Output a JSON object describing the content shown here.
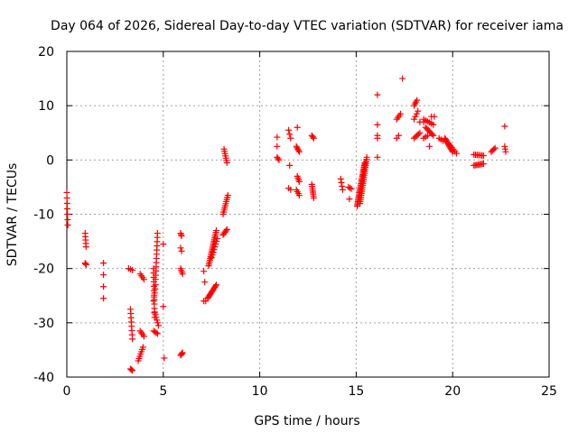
{
  "chart_data": {
    "type": "scatter",
    "title": "Day 064 of 2026, Sidereal Day-to-day VTEC variation (SDTVAR) for receiver iama",
    "xlabel": "GPS time / hours",
    "ylabel": "SDTVAR / TECUs",
    "xlim": [
      0,
      25
    ],
    "ylim": [
      -40,
      20
    ],
    "xticks": [
      0,
      5,
      10,
      15,
      20,
      25
    ],
    "yticks": [
      -40,
      -30,
      -20,
      -10,
      0,
      10,
      20
    ],
    "grid": true,
    "marker": "+",
    "color": "#ff0000",
    "series": [
      {
        "name": "iama",
        "segments": [
          {
            "x0": 0.0,
            "y0": -6,
            "x1": 0.05,
            "y1": -12,
            "n": 7
          },
          {
            "x0": 0.95,
            "y0": -13.5,
            "x1": 1.0,
            "y1": -16,
            "n": 5
          },
          {
            "x0": 0.95,
            "y0": -19,
            "x1": 1.0,
            "y1": -19.3,
            "n": 3
          },
          {
            "x0": 1.9,
            "y0": -19,
            "x1": 1.9,
            "y1": -25.5,
            "n": 4
          },
          {
            "x0": 3.2,
            "y0": -20,
            "x1": 3.4,
            "y1": -20.3,
            "n": 3
          },
          {
            "x0": 3.3,
            "y0": -27.5,
            "x1": 3.4,
            "y1": -33,
            "n": 8
          },
          {
            "x0": 3.3,
            "y0": -38.5,
            "x1": 3.4,
            "y1": -38.8,
            "n": 3
          },
          {
            "x0": 3.8,
            "y0": -21,
            "x1": 4.0,
            "y1": -22,
            "n": 4
          },
          {
            "x0": 3.8,
            "y0": -31.5,
            "x1": 4.0,
            "y1": -32.5,
            "n": 4
          },
          {
            "x0": 3.7,
            "y0": -37,
            "x1": 3.95,
            "y1": -34.5,
            "n": 7
          },
          {
            "x0": 4.5,
            "y0": -20,
            "x1": 4.55,
            "y1": -29,
            "n": 12
          },
          {
            "x0": 4.5,
            "y0": -31.5,
            "x1": 4.7,
            "y1": -32,
            "n": 4
          },
          {
            "x0": 4.55,
            "y0": -28,
            "x1": 4.75,
            "y1": -30.5,
            "n": 6
          },
          {
            "x0": 4.6,
            "y0": -22,
            "x1": 4.7,
            "y1": -13.5,
            "n": 12
          },
          {
            "x0": 4.5,
            "y0": -26,
            "x1": 4.6,
            "y1": -23,
            "n": 5
          },
          {
            "x0": 5.0,
            "y0": -15.5,
            "x1": 5.0,
            "y1": -15.5,
            "n": 1
          },
          {
            "x0": 5.0,
            "y0": -27,
            "x1": 5.0,
            "y1": -27,
            "n": 1
          },
          {
            "x0": 5.05,
            "y0": -36.5,
            "x1": 5.05,
            "y1": -36.5,
            "n": 1
          },
          {
            "x0": 5.9,
            "y0": -13.5,
            "x1": 5.95,
            "y1": -14,
            "n": 3
          },
          {
            "x0": 5.9,
            "y0": -16.2,
            "x1": 5.95,
            "y1": -16.8,
            "n": 2
          },
          {
            "x0": 5.9,
            "y0": -20,
            "x1": 6.0,
            "y1": -21,
            "n": 4
          },
          {
            "x0": 5.9,
            "y0": -36,
            "x1": 6.0,
            "y1": -35.5,
            "n": 4
          },
          {
            "x0": 7.1,
            "y0": -20.5,
            "x1": 7.15,
            "y1": -22.5,
            "n": 2
          },
          {
            "x0": 7.1,
            "y0": -26,
            "x1": 7.2,
            "y1": -26,
            "n": 2
          },
          {
            "x0": 7.3,
            "y0": -25.5,
            "x1": 7.75,
            "y1": -23,
            "n": 12
          },
          {
            "x0": 7.35,
            "y0": -19.5,
            "x1": 7.75,
            "y1": -13,
            "n": 20
          },
          {
            "x0": 7.5,
            "y0": -18,
            "x1": 7.8,
            "y1": -14.5,
            "n": 8
          },
          {
            "x0": 8.1,
            "y0": -13.8,
            "x1": 8.3,
            "y1": -12.8,
            "n": 5
          },
          {
            "x0": 8.1,
            "y0": -10,
            "x1": 8.35,
            "y1": -6.5,
            "n": 10
          },
          {
            "x0": 8.15,
            "y0": 2,
            "x1": 8.3,
            "y1": -0.5,
            "n": 7
          },
          {
            "x0": 10.9,
            "y0": 4.2,
            "x1": 10.9,
            "y1": 2.5,
            "n": 2
          },
          {
            "x0": 10.9,
            "y0": 0.5,
            "x1": 11.0,
            "y1": 0,
            "n": 3
          },
          {
            "x0": 11.5,
            "y0": 5.5,
            "x1": 11.6,
            "y1": 4,
            "n": 3
          },
          {
            "x0": 11.55,
            "y0": -1,
            "x1": 11.55,
            "y1": -1,
            "n": 1
          },
          {
            "x0": 11.5,
            "y0": -5.2,
            "x1": 11.6,
            "y1": -5.5,
            "n": 2
          },
          {
            "x0": 11.95,
            "y0": 6,
            "x1": 11.95,
            "y1": 6,
            "n": 1
          },
          {
            "x0": 11.9,
            "y0": 2.5,
            "x1": 12.05,
            "y1": 1.5,
            "n": 5
          },
          {
            "x0": 11.95,
            "y0": -3,
            "x1": 12.05,
            "y1": -4,
            "n": 4
          },
          {
            "x0": 11.9,
            "y0": -5.5,
            "x1": 12.05,
            "y1": -6.5,
            "n": 4
          },
          {
            "x0": 12.7,
            "y0": 4.5,
            "x1": 12.8,
            "y1": 4,
            "n": 3
          },
          {
            "x0": 12.7,
            "y0": -4.5,
            "x1": 12.8,
            "y1": -7,
            "n": 8
          },
          {
            "x0": 14.2,
            "y0": -3.5,
            "x1": 14.3,
            "y1": -5.5,
            "n": 4
          },
          {
            "x0": 14.6,
            "y0": -5,
            "x1": 14.75,
            "y1": -5.3,
            "n": 3
          },
          {
            "x0": 14.65,
            "y0": -7.2,
            "x1": 14.65,
            "y1": -7.2,
            "n": 1
          },
          {
            "x0": 15.05,
            "y0": -8.5,
            "x1": 15.45,
            "y1": -0.5,
            "n": 30
          },
          {
            "x0": 15.2,
            "y0": -8,
            "x1": 15.55,
            "y1": 0.5,
            "n": 24
          },
          {
            "x0": 16.1,
            "y0": 12,
            "x1": 16.1,
            "y1": 12,
            "n": 1
          },
          {
            "x0": 16.1,
            "y0": 6.5,
            "x1": 16.1,
            "y1": 6.5,
            "n": 1
          },
          {
            "x0": 16.1,
            "y0": 4,
            "x1": 16.1,
            "y1": 4.5,
            "n": 2
          },
          {
            "x0": 16.1,
            "y0": 0.5,
            "x1": 16.1,
            "y1": 0.5,
            "n": 1
          },
          {
            "x0": 17.1,
            "y0": 4,
            "x1": 17.2,
            "y1": 4.5,
            "n": 2
          },
          {
            "x0": 17.1,
            "y0": 7.5,
            "x1": 17.3,
            "y1": 8.5,
            "n": 4
          },
          {
            "x0": 17.4,
            "y0": 15,
            "x1": 17.4,
            "y1": 15,
            "n": 1
          },
          {
            "x0": 18.0,
            "y0": 10,
            "x1": 18.15,
            "y1": 11,
            "n": 4
          },
          {
            "x0": 18.0,
            "y0": 7.5,
            "x1": 18.2,
            "y1": 9,
            "n": 4
          },
          {
            "x0": 18.0,
            "y0": 4,
            "x1": 18.3,
            "y1": 5,
            "n": 5
          },
          {
            "x0": 18.3,
            "y0": 7,
            "x1": 18.5,
            "y1": 7,
            "n": 2
          },
          {
            "x0": 18.5,
            "y0": 7.5,
            "x1": 19.0,
            "y1": 6.5,
            "n": 6
          },
          {
            "x0": 18.6,
            "y0": 6,
            "x1": 19.0,
            "y1": 4.5,
            "n": 7
          },
          {
            "x0": 18.5,
            "y0": 4,
            "x1": 18.7,
            "y1": 4.5,
            "n": 3
          },
          {
            "x0": 18.8,
            "y0": 2.5,
            "x1": 18.8,
            "y1": 2.5,
            "n": 1
          },
          {
            "x0": 18.9,
            "y0": 8,
            "x1": 19.05,
            "y1": 8,
            "n": 2
          },
          {
            "x0": 19.3,
            "y0": 4,
            "x1": 19.5,
            "y1": 3.5,
            "n": 3
          },
          {
            "x0": 19.6,
            "y0": 4,
            "x1": 20.0,
            "y1": 1.5,
            "n": 12
          },
          {
            "x0": 19.8,
            "y0": 3,
            "x1": 20.2,
            "y1": 1.2,
            "n": 6
          },
          {
            "x0": 21.1,
            "y0": -1,
            "x1": 21.6,
            "y1": -0.7,
            "n": 8
          },
          {
            "x0": 21.1,
            "y0": 1,
            "x1": 21.6,
            "y1": 0.8,
            "n": 7
          },
          {
            "x0": 22.0,
            "y0": 1.5,
            "x1": 22.2,
            "y1": 2.2,
            "n": 4
          },
          {
            "x0": 22.7,
            "y0": 6.2,
            "x1": 22.7,
            "y1": 6.2,
            "n": 1
          },
          {
            "x0": 22.7,
            "y0": 2.5,
            "x1": 22.75,
            "y1": 1.5,
            "n": 3
          }
        ]
      }
    ]
  }
}
